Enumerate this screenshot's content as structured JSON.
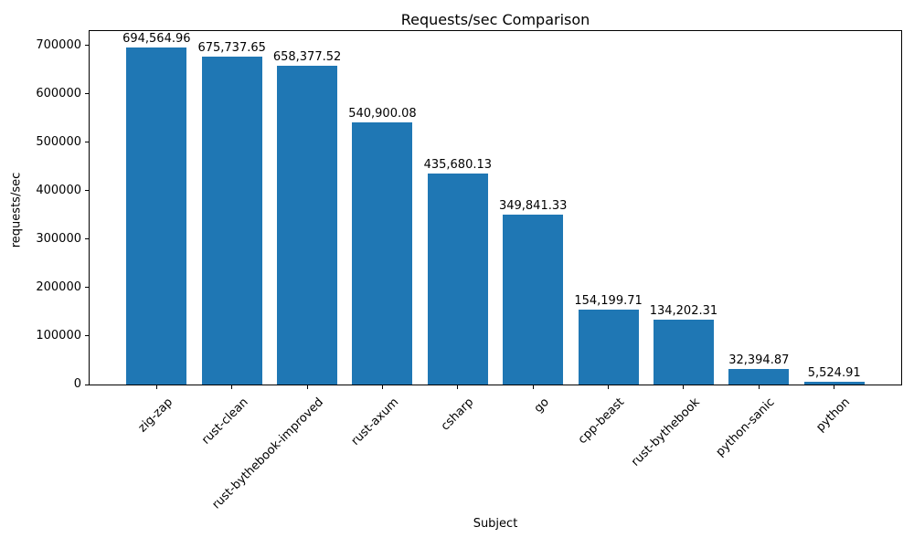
{
  "chart_data": {
    "type": "bar",
    "title": "Requests/sec Comparison",
    "xlabel": "Subject",
    "ylabel": "requests/sec",
    "categories": [
      "zig-zap",
      "rust-clean",
      "rust-bythebook-improved",
      "rust-axum",
      "csharp",
      "go",
      "cpp-beast",
      "rust-bythebook",
      "python-sanic",
      "python"
    ],
    "values": [
      694564.96,
      675737.65,
      658377.52,
      540900.08,
      435680.13,
      349841.33,
      154199.71,
      134202.31,
      32394.87,
      5524.91
    ],
    "value_labels": [
      "694,564.96",
      "675,737.65",
      "658,377.52",
      "540,900.08",
      "435,680.13",
      "349,841.33",
      "154,199.71",
      "134,202.31",
      "32,394.87",
      "5,524.91"
    ],
    "yticks": [
      0,
      100000,
      200000,
      300000,
      400000,
      500000,
      600000,
      700000
    ],
    "ytick_labels": [
      "0",
      "100000",
      "200000",
      "300000",
      "400000",
      "500000",
      "600000",
      "700000"
    ],
    "ylim": [
      0,
      729293
    ],
    "bar_color": "#1f77b4",
    "text_color": "#000000",
    "grid": false,
    "legend": null
  }
}
